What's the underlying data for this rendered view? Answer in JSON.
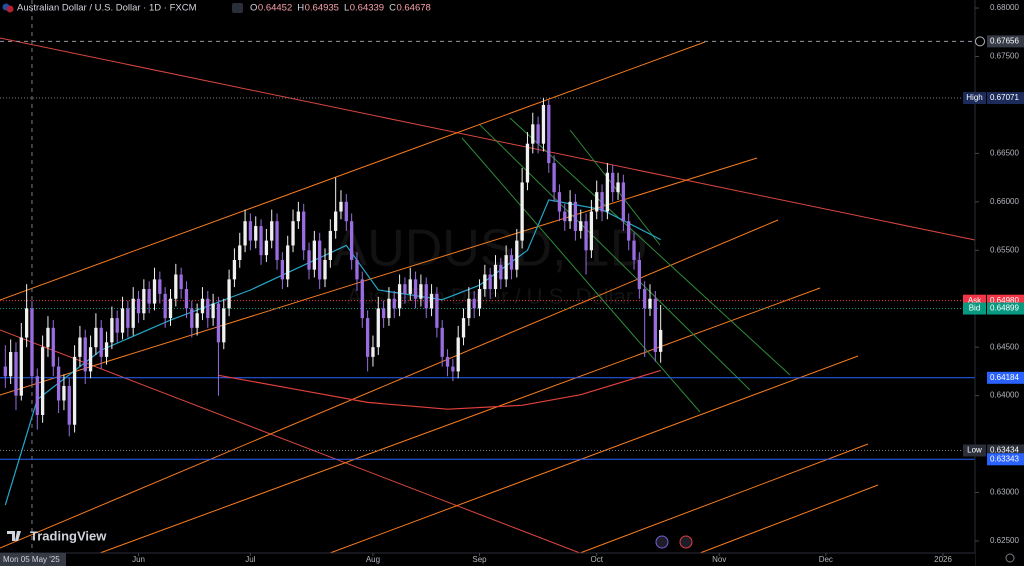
{
  "chart_data": {
    "type": "candlestick",
    "title": "Australian Dollar / U.S. Dollar · 1D · FXCM",
    "legend_labels": [
      "O",
      "H",
      "L",
      "C"
    ],
    "legend_values": [
      "0.64452",
      "0.64935",
      "0.64339",
      "0.64678"
    ],
    "watermark": "AUDUSD, 1D",
    "watermark_subtitle": "Australian Dollar / U.S. Dollar",
    "brand": "TradingView",
    "up_color": "#f0f0f0",
    "down_color": "#9a6ce0",
    "xlim": [
      -1,
      182
    ],
    "ylim": [
      0.62376,
      0.68083
    ],
    "xticks": [
      {
        "value": 25,
        "label": "Jun"
      },
      {
        "value": 46,
        "label": "Jul"
      },
      {
        "value": 69,
        "label": "Aug"
      },
      {
        "value": 89,
        "label": "Sep"
      },
      {
        "value": 111,
        "label": "Oct"
      },
      {
        "value": 134,
        "label": "Nov"
      },
      {
        "value": 154,
        "label": "Dec"
      },
      {
        "value": 176,
        "label": "2026"
      }
    ],
    "yticks": [
      {
        "value": 0.68,
        "label": "0.68000"
      },
      {
        "value": 0.675,
        "label": "0.67500"
      },
      {
        "value": 0.665,
        "label": "0.66500"
      },
      {
        "value": 0.66,
        "label": "0.66000"
      },
      {
        "value": 0.655,
        "label": "0.65500"
      },
      {
        "value": 0.645,
        "label": "0.64500"
      },
      {
        "value": 0.64,
        "label": "0.64000"
      },
      {
        "value": 0.63,
        "label": "0.63000"
      },
      {
        "value": 0.625,
        "label": "0.62500"
      }
    ],
    "crosshair": {
      "value": 5,
      "label": "Mon 05 May '25"
    },
    "price_lines": [
      {
        "value": 0.67656,
        "color": "#9598a1",
        "box_color": "#363a45",
        "style": "dashed"
      },
      {
        "value": 0.67071,
        "label": "High",
        "color": "#787b86",
        "box_color": "#1c2b5a",
        "style": "dotted"
      },
      {
        "value": 0.6498,
        "value_label": "0.64980",
        "label": "Ask",
        "color": "#f23645",
        "box_color": "#f23645",
        "style": "dotted"
      },
      {
        "value": 0.64899,
        "label": "Bid",
        "color": "#089981",
        "box_color": "#089981",
        "style": "dotted"
      },
      {
        "value": 0.64184,
        "color": "#2962ff",
        "box_color": "#2962ff",
        "style": "solid"
      },
      {
        "value": 0.63434,
        "label": "Low",
        "color": "#787b86",
        "box_color": "#2a2e39",
        "style": "dotted"
      },
      {
        "value": 0.63343,
        "color": "#2962ff",
        "box_color": "#2962ff",
        "style": "solid"
      }
    ],
    "moving_averages": [
      {
        "color": "#26a6c9",
        "x": [
          0,
          6,
          18,
          31,
          46,
          64,
          70,
          82,
          89,
          98,
          102,
          112,
          123
        ],
        "values": [
          0.6287,
          0.6396,
          0.6447,
          0.6478,
          0.6509,
          0.6555,
          0.6509,
          0.6499,
          0.6514,
          0.655,
          0.6602,
          0.6592,
          0.6561
        ]
      },
      {
        "color": "#e0413a",
        "x": [
          40,
          55,
          68,
          83,
          97,
          108,
          123
        ],
        "values": [
          0.6421,
          0.6406,
          0.6393,
          0.6386,
          0.639,
          0.6401,
          0.6426
        ]
      }
    ],
    "candles": [
      [
        0.643,
        0.6452,
        0.6408,
        0.642
      ],
      [
        0.642,
        0.6458,
        0.6412,
        0.6445
      ],
      [
        0.6445,
        0.6455,
        0.6385,
        0.64
      ],
      [
        0.64,
        0.6475,
        0.6395,
        0.646
      ],
      [
        0.646,
        0.6515,
        0.645,
        0.649
      ],
      [
        0.649,
        0.6498,
        0.641,
        0.642
      ],
      [
        0.642,
        0.6428,
        0.6365,
        0.638
      ],
      [
        0.638,
        0.6462,
        0.6372,
        0.645
      ],
      [
        0.645,
        0.6482,
        0.644,
        0.647
      ],
      [
        0.647,
        0.6478,
        0.642,
        0.643
      ],
      [
        0.643,
        0.644,
        0.6382,
        0.6395
      ],
      [
        0.6395,
        0.6422,
        0.6385,
        0.641
      ],
      [
        0.641,
        0.6418,
        0.6358,
        0.637
      ],
      [
        0.637,
        0.6452,
        0.6362,
        0.644
      ],
      [
        0.644,
        0.6472,
        0.643,
        0.646
      ],
      [
        0.646,
        0.6468,
        0.6412,
        0.6425
      ],
      [
        0.6425,
        0.6462,
        0.6418,
        0.645
      ],
      [
        0.645,
        0.6485,
        0.6442,
        0.647
      ],
      [
        0.647,
        0.6478,
        0.6428,
        0.644
      ],
      [
        0.644,
        0.6466,
        0.6432,
        0.6455
      ],
      [
        0.6455,
        0.6492,
        0.6448,
        0.648
      ],
      [
        0.648,
        0.6488,
        0.6455,
        0.6465
      ],
      [
        0.6465,
        0.6502,
        0.6458,
        0.649
      ],
      [
        0.649,
        0.6498,
        0.646,
        0.647
      ],
      [
        0.647,
        0.6512,
        0.6462,
        0.65
      ],
      [
        0.65,
        0.6508,
        0.6475,
        0.6485
      ],
      [
        0.6485,
        0.652,
        0.6478,
        0.651
      ],
      [
        0.651,
        0.6518,
        0.6485,
        0.6495
      ],
      [
        0.6495,
        0.6532,
        0.6488,
        0.652
      ],
      [
        0.652,
        0.6528,
        0.6495,
        0.6505
      ],
      [
        0.6505,
        0.6512,
        0.647,
        0.648
      ],
      [
        0.648,
        0.651,
        0.6472,
        0.65
      ],
      [
        0.65,
        0.6536,
        0.6492,
        0.6525
      ],
      [
        0.6525,
        0.6532,
        0.65,
        0.651
      ],
      [
        0.651,
        0.6518,
        0.648,
        0.649
      ],
      [
        0.649,
        0.6498,
        0.646,
        0.647
      ],
      [
        0.647,
        0.6495,
        0.6462,
        0.6485
      ],
      [
        0.6485,
        0.6512,
        0.6478,
        0.65
      ],
      [
        0.65,
        0.6508,
        0.647,
        0.648
      ],
      [
        0.648,
        0.6505,
        0.6472,
        0.6495
      ],
      [
        0.6495,
        0.6502,
        0.64,
        0.6455
      ],
      [
        0.6455,
        0.65,
        0.6448,
        0.649
      ],
      [
        0.649,
        0.653,
        0.6482,
        0.652
      ],
      [
        0.652,
        0.6552,
        0.6512,
        0.654
      ],
      [
        0.654,
        0.6568,
        0.6532,
        0.6555
      ],
      [
        0.6555,
        0.6592,
        0.6548,
        0.658
      ],
      [
        0.658,
        0.6588,
        0.655,
        0.656
      ],
      [
        0.656,
        0.6585,
        0.6552,
        0.6575
      ],
      [
        0.6575,
        0.6582,
        0.6535,
        0.6545
      ],
      [
        0.6545,
        0.6572,
        0.6538,
        0.656
      ],
      [
        0.656,
        0.6592,
        0.6552,
        0.658
      ],
      [
        0.658,
        0.6588,
        0.653,
        0.654
      ],
      [
        0.654,
        0.6548,
        0.651,
        0.652
      ],
      [
        0.652,
        0.6565,
        0.6512,
        0.6555
      ],
      [
        0.6555,
        0.6592,
        0.6548,
        0.658
      ],
      [
        0.658,
        0.66,
        0.6572,
        0.659
      ],
      [
        0.659,
        0.6598,
        0.654,
        0.655
      ],
      [
        0.655,
        0.6558,
        0.652,
        0.653
      ],
      [
        0.653,
        0.657,
        0.6522,
        0.656
      ],
      [
        0.656,
        0.6568,
        0.651,
        0.652
      ],
      [
        0.652,
        0.6552,
        0.6512,
        0.654
      ],
      [
        0.654,
        0.6582,
        0.6532,
        0.657
      ],
      [
        0.657,
        0.6625,
        0.6562,
        0.659
      ],
      [
        0.659,
        0.6612,
        0.6582,
        0.66
      ],
      [
        0.66,
        0.6608,
        0.657,
        0.658
      ],
      [
        0.658,
        0.6588,
        0.653,
        0.654
      ],
      [
        0.654,
        0.6548,
        0.6508,
        0.652
      ],
      [
        0.652,
        0.6528,
        0.647,
        0.648
      ],
      [
        0.648,
        0.6488,
        0.6425,
        0.644
      ],
      [
        0.644,
        0.6462,
        0.643,
        0.645
      ],
      [
        0.645,
        0.6502,
        0.6442,
        0.649
      ],
      [
        0.649,
        0.6498,
        0.647,
        0.648
      ],
      [
        0.648,
        0.6512,
        0.6472,
        0.65
      ],
      [
        0.65,
        0.6508,
        0.648,
        0.649
      ],
      [
        0.649,
        0.6525,
        0.6482,
        0.6515
      ],
      [
        0.6515,
        0.6522,
        0.6495,
        0.6505
      ],
      [
        0.6505,
        0.6532,
        0.6498,
        0.652
      ],
      [
        0.652,
        0.6528,
        0.649,
        0.65
      ],
      [
        0.65,
        0.6525,
        0.6492,
        0.6515
      ],
      [
        0.6515,
        0.6522,
        0.648,
        0.649
      ],
      [
        0.649,
        0.6515,
        0.6482,
        0.6505
      ],
      [
        0.6505,
        0.6512,
        0.646,
        0.647
      ],
      [
        0.647,
        0.6478,
        0.643,
        0.644
      ],
      [
        0.644,
        0.6448,
        0.642,
        0.643
      ],
      [
        0.643,
        0.6438,
        0.6415,
        0.6425
      ],
      [
        0.6425,
        0.6472,
        0.6418,
        0.646
      ],
      [
        0.646,
        0.649,
        0.6452,
        0.648
      ],
      [
        0.648,
        0.6512,
        0.6472,
        0.65
      ],
      [
        0.65,
        0.6508,
        0.648,
        0.649
      ],
      [
        0.649,
        0.652,
        0.6482,
        0.651
      ],
      [
        0.651,
        0.6535,
        0.6502,
        0.6525
      ],
      [
        0.6525,
        0.6532,
        0.65,
        0.651
      ],
      [
        0.651,
        0.6545,
        0.6502,
        0.6535
      ],
      [
        0.6535,
        0.6542,
        0.651,
        0.652
      ],
      [
        0.652,
        0.6555,
        0.6512,
        0.6545
      ],
      [
        0.6545,
        0.6552,
        0.652,
        0.653
      ],
      [
        0.653,
        0.6572,
        0.6522,
        0.656
      ],
      [
        0.656,
        0.6635,
        0.6552,
        0.662
      ],
      [
        0.662,
        0.6672,
        0.6612,
        0.666
      ],
      [
        0.666,
        0.6692,
        0.665,
        0.668
      ],
      [
        0.668,
        0.6688,
        0.665,
        0.666
      ],
      [
        0.666,
        0.6707,
        0.6652,
        0.67
      ],
      [
        0.67,
        0.6705,
        0.663,
        0.664
      ],
      [
        0.664,
        0.6648,
        0.66,
        0.661
      ],
      [
        0.661,
        0.6618,
        0.658,
        0.659
      ],
      [
        0.659,
        0.6598,
        0.657,
        0.658
      ],
      [
        0.658,
        0.6612,
        0.6572,
        0.66
      ],
      [
        0.66,
        0.6608,
        0.656,
        0.657
      ],
      [
        0.657,
        0.6592,
        0.6562,
        0.658
      ],
      [
        0.658,
        0.6588,
        0.6525,
        0.655
      ],
      [
        0.655,
        0.6602,
        0.6542,
        0.659
      ],
      [
        0.659,
        0.6622,
        0.6582,
        0.661
      ],
      [
        0.661,
        0.6618,
        0.658,
        0.659
      ],
      [
        0.659,
        0.664,
        0.6582,
        0.663
      ],
      [
        0.663,
        0.6638,
        0.66,
        0.661
      ],
      [
        0.661,
        0.663,
        0.6602,
        0.662
      ],
      [
        0.662,
        0.6628,
        0.657,
        0.658
      ],
      [
        0.658,
        0.6588,
        0.655,
        0.656
      ],
      [
        0.656,
        0.6568,
        0.653,
        0.654
      ],
      [
        0.654,
        0.6548,
        0.65,
        0.651
      ],
      [
        0.651,
        0.6518,
        0.644,
        0.649
      ],
      [
        0.649,
        0.6515,
        0.6482,
        0.65
      ],
      [
        0.65,
        0.6508,
        0.6435,
        0.6445
      ],
      [
        0.64452,
        0.64935,
        0.64339,
        0.64678
      ]
    ]
  }
}
